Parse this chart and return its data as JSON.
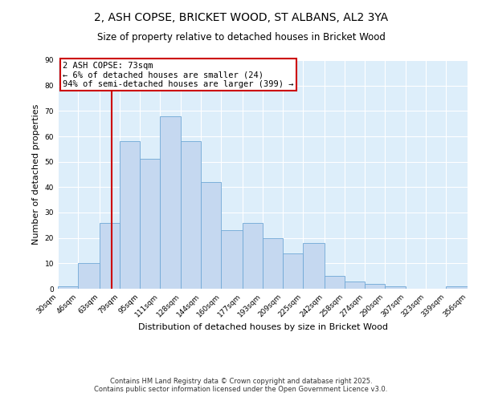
{
  "title": "2, ASH COPSE, BRICKET WOOD, ST ALBANS, AL2 3YA",
  "subtitle": "Size of property relative to detached houses in Bricket Wood",
  "xlabel": "Distribution of detached houses by size in Bricket Wood",
  "ylabel": "Number of detached properties",
  "bin_labels": [
    "30sqm",
    "46sqm",
    "63sqm",
    "79sqm",
    "95sqm",
    "111sqm",
    "128sqm",
    "144sqm",
    "160sqm",
    "177sqm",
    "193sqm",
    "209sqm",
    "225sqm",
    "242sqm",
    "258sqm",
    "274sqm",
    "290sqm",
    "307sqm",
    "323sqm",
    "339sqm",
    "356sqm"
  ],
  "bar_values": [
    1,
    10,
    26,
    58,
    51,
    68,
    58,
    42,
    23,
    26,
    20,
    14,
    18,
    5,
    3,
    2,
    1,
    0,
    0,
    1
  ],
  "bin_edges": [
    30,
    46,
    63,
    79,
    95,
    111,
    128,
    144,
    160,
    177,
    193,
    209,
    225,
    242,
    258,
    274,
    290,
    307,
    323,
    339,
    356
  ],
  "bar_color": "#c5d8f0",
  "bar_edge_color": "#6fa8d6",
  "vline_x": 73,
  "vline_color": "#cc0000",
  "annotation_line1": "2 ASH COPSE: 73sqm",
  "annotation_line2": "← 6% of detached houses are smaller (24)",
  "annotation_line3": "94% of semi-detached houses are larger (399) →",
  "annotation_box_edge": "#cc0000",
  "annotation_box_face": "#ffffff",
  "ylim": [
    0,
    90
  ],
  "yticks": [
    0,
    10,
    20,
    30,
    40,
    50,
    60,
    70,
    80,
    90
  ],
  "bg_color": "#ddeefa",
  "footer_line1": "Contains HM Land Registry data © Crown copyright and database right 2025.",
  "footer_line2": "Contains public sector information licensed under the Open Government Licence v3.0.",
  "title_fontsize": 10,
  "subtitle_fontsize": 8.5,
  "axis_label_fontsize": 8,
  "tick_fontsize": 6.5,
  "annotation_fontsize": 7.5,
  "footer_fontsize": 6
}
